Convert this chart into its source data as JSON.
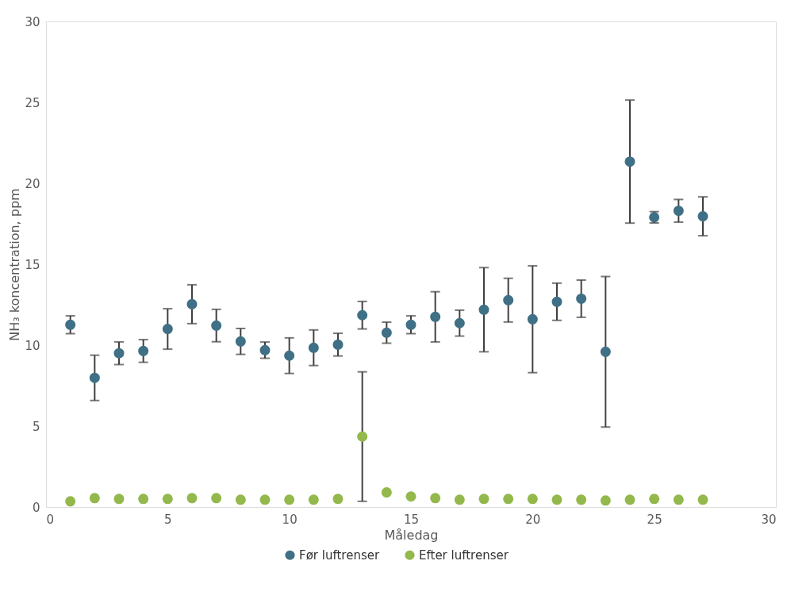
{
  "chart_data": {
    "type": "scatter",
    "xlabel": "Måledag",
    "ylabel": "NH₃ koncentration, ppm",
    "x": [
      1,
      2,
      3,
      4,
      5,
      6,
      7,
      8,
      9,
      10,
      11,
      12,
      13,
      14,
      15,
      16,
      17,
      18,
      19,
      20,
      21,
      22,
      23,
      24,
      25,
      26,
      27
    ],
    "series": [
      {
        "name": "Før luftrenser",
        "color": "#3f7086",
        "values": [
          11.26,
          7.98,
          9.5,
          9.64,
          11.0,
          12.53,
          11.21,
          10.23,
          9.69,
          9.35,
          9.84,
          10.03,
          11.85,
          10.77,
          11.26,
          11.75,
          11.36,
          12.19,
          12.78,
          11.6,
          12.68,
          12.87,
          9.59,
          21.34,
          17.9,
          18.3,
          17.96
        ],
        "errors": [
          0.55,
          1.4,
          0.7,
          0.7,
          1.25,
          1.2,
          1.0,
          0.8,
          0.5,
          1.1,
          1.1,
          0.7,
          0.85,
          0.65,
          0.55,
          1.55,
          0.8,
          2.6,
          1.35,
          3.3,
          1.15,
          1.15,
          4.65,
          3.8,
          0.35,
          0.7,
          1.2
        ]
      },
      {
        "name": "Efter luftrenser",
        "color": "#93b84c",
        "values": [
          0.35,
          0.55,
          0.5,
          0.5,
          0.5,
          0.55,
          0.55,
          0.45,
          0.45,
          0.45,
          0.45,
          0.5,
          4.35,
          0.9,
          0.65,
          0.55,
          0.45,
          0.5,
          0.5,
          0.5,
          0.45,
          0.45,
          0.4,
          0.45,
          0.5,
          0.45,
          0.45
        ],
        "errors": [
          null,
          null,
          null,
          null,
          null,
          null,
          null,
          null,
          null,
          null,
          null,
          null,
          4.0,
          null,
          null,
          null,
          null,
          null,
          null,
          null,
          null,
          null,
          null,
          null,
          null,
          null,
          null
        ]
      }
    ],
    "xlim": [
      0,
      30
    ],
    "xticks": [
      0,
      5,
      10,
      15,
      20,
      25,
      30
    ],
    "ylim": [
      0,
      30
    ],
    "yticks": [
      0,
      5,
      10,
      15,
      20,
      25,
      30
    ],
    "grid": false,
    "legend": "bottom",
    "marker": "circle"
  }
}
